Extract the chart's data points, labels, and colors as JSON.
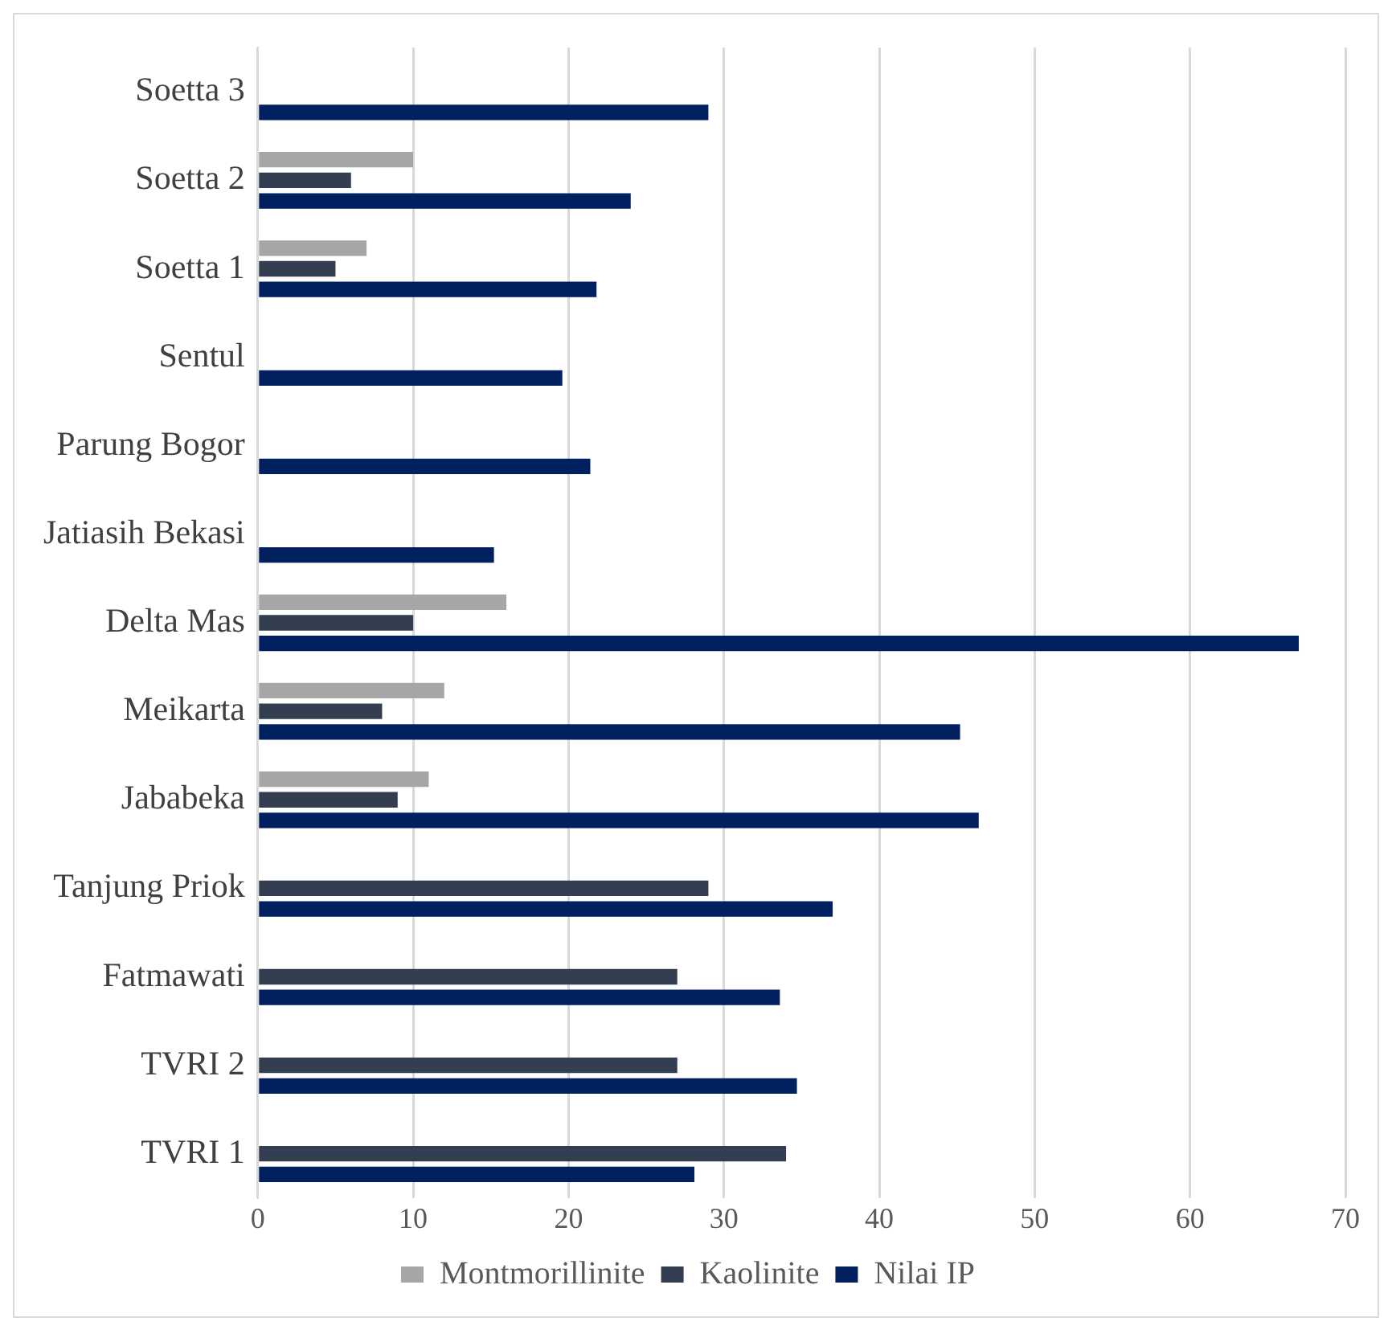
{
  "chart_data": {
    "type": "bar",
    "orientation": "horizontal",
    "categories": [
      "Soetta 3",
      "Soetta 2",
      "Soetta 1",
      "Sentul",
      "Parung Bogor",
      "Jatiasih Bekasi",
      "Delta Mas",
      "Meikarta",
      "Jababeka",
      "Tanjung Priok",
      "Fatmawati",
      "TVRI 2",
      "TVRI 1"
    ],
    "series": [
      {
        "name": "Montmorillinite",
        "color": "#a6a6a6",
        "values": [
          null,
          10,
          7,
          null,
          null,
          null,
          16,
          12,
          11,
          null,
          null,
          null,
          null
        ]
      },
      {
        "name": "Kaolinite",
        "color": "#333f50",
        "values": [
          null,
          6,
          5,
          null,
          null,
          null,
          10,
          8,
          9,
          29,
          27,
          27,
          34
        ]
      },
      {
        "name": "Nilai IP",
        "color": "#002060",
        "values": [
          29,
          24,
          21.8,
          19.6,
          21.4,
          15.2,
          67,
          45.2,
          46.4,
          37,
          33.6,
          34.7,
          28.1
        ]
      }
    ],
    "xlim": [
      0,
      70
    ],
    "xticks": [
      0,
      10,
      20,
      30,
      40,
      50,
      60,
      70
    ],
    "grid": "x",
    "legend": "bottom"
  }
}
